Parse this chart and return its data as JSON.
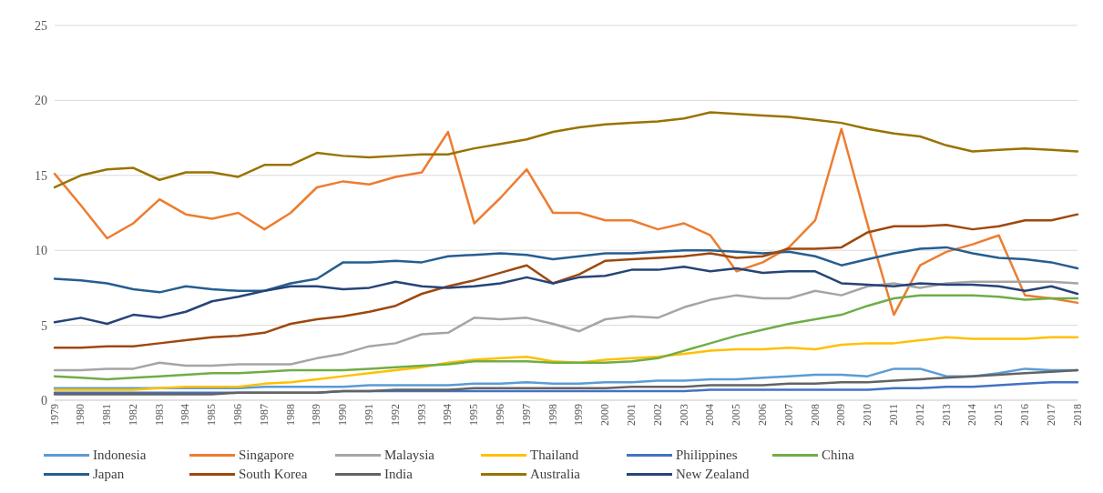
{
  "chart_data": {
    "type": "line",
    "categories": [
      "1979",
      "1980",
      "1981",
      "1982",
      "1983",
      "1984",
      "1985",
      "1986",
      "1987",
      "1988",
      "1989",
      "1990",
      "1991",
      "1992",
      "1993",
      "1994",
      "1995",
      "1996",
      "1997",
      "1998",
      "1999",
      "2000",
      "2001",
      "2002",
      "2003",
      "2004",
      "2005",
      "2006",
      "2007",
      "2008",
      "2009",
      "2010",
      "2011",
      "2012",
      "2013",
      "2014",
      "2015",
      "2016",
      "2017",
      "2018"
    ],
    "series": [
      {
        "name": "Indonesia",
        "color": "#5b9bd5",
        "values": [
          0.8,
          0.8,
          0.8,
          0.8,
          0.8,
          0.8,
          0.8,
          0.8,
          0.9,
          0.9,
          0.9,
          0.9,
          1.0,
          1.0,
          1.0,
          1.0,
          1.1,
          1.1,
          1.2,
          1.1,
          1.1,
          1.2,
          1.2,
          1.3,
          1.3,
          1.4,
          1.4,
          1.5,
          1.6,
          1.7,
          1.7,
          1.6,
          2.1,
          2.1,
          1.6,
          1.6,
          1.8,
          2.1,
          2.0,
          2.0
        ]
      },
      {
        "name": "Singapore",
        "color": "#ed7d31",
        "values": [
          15.1,
          13.0,
          10.8,
          11.8,
          13.4,
          12.4,
          12.1,
          12.5,
          11.4,
          12.5,
          14.2,
          14.6,
          14.4,
          14.9,
          15.2,
          17.9,
          11.8,
          13.5,
          15.4,
          12.5,
          12.5,
          12.0,
          12.0,
          11.4,
          11.8,
          11.0,
          8.6,
          9.2,
          10.2,
          12.0,
          18.1,
          11.7,
          5.7,
          9.0,
          9.9,
          10.4,
          11.0,
          7.0,
          6.8,
          6.5
        ]
      },
      {
        "name": "Malaysia",
        "color": "#a5a5a5",
        "values": [
          2.0,
          2.0,
          2.1,
          2.1,
          2.5,
          2.3,
          2.3,
          2.4,
          2.4,
          2.4,
          2.8,
          3.1,
          3.6,
          3.8,
          4.4,
          4.5,
          5.5,
          5.4,
          5.5,
          5.1,
          4.6,
          5.4,
          5.6,
          5.5,
          6.2,
          6.7,
          7.0,
          6.8,
          6.8,
          7.3,
          7.0,
          7.6,
          7.8,
          7.5,
          7.8,
          7.9,
          7.9,
          7.9,
          7.9,
          7.8
        ]
      },
      {
        "name": "Thailand",
        "color": "#ffc000",
        "values": [
          0.7,
          0.7,
          0.7,
          0.7,
          0.8,
          0.9,
          0.9,
          0.9,
          1.1,
          1.2,
          1.4,
          1.6,
          1.8,
          2.0,
          2.2,
          2.5,
          2.7,
          2.8,
          2.9,
          2.6,
          2.5,
          2.7,
          2.8,
          2.9,
          3.1,
          3.3,
          3.4,
          3.4,
          3.5,
          3.4,
          3.7,
          3.8,
          3.8,
          4.0,
          4.2,
          4.1,
          4.1,
          4.1,
          4.2,
          4.2
        ]
      },
      {
        "name": "Philippines",
        "color": "#4472c4",
        "values": [
          0.5,
          0.5,
          0.5,
          0.5,
          0.5,
          0.5,
          0.5,
          0.5,
          0.5,
          0.5,
          0.5,
          0.6,
          0.6,
          0.6,
          0.6,
          0.6,
          0.6,
          0.6,
          0.6,
          0.6,
          0.6,
          0.6,
          0.6,
          0.6,
          0.6,
          0.7,
          0.7,
          0.7,
          0.7,
          0.7,
          0.7,
          0.7,
          0.8,
          0.8,
          0.9,
          0.9,
          1.0,
          1.1,
          1.2,
          1.2
        ]
      },
      {
        "name": "China",
        "color": "#70ad47",
        "values": [
          1.6,
          1.5,
          1.4,
          1.5,
          1.6,
          1.7,
          1.8,
          1.8,
          1.9,
          2.0,
          2.0,
          2.0,
          2.1,
          2.2,
          2.3,
          2.4,
          2.6,
          2.6,
          2.6,
          2.5,
          2.5,
          2.5,
          2.6,
          2.8,
          3.3,
          3.8,
          4.3,
          4.7,
          5.1,
          5.4,
          5.7,
          6.3,
          6.8,
          7.0,
          7.0,
          7.0,
          6.9,
          6.7,
          6.8,
          6.8
        ]
      },
      {
        "name": "Japan",
        "color": "#255e91",
        "values": [
          8.1,
          8.0,
          7.8,
          7.4,
          7.2,
          7.6,
          7.4,
          7.3,
          7.3,
          7.8,
          8.1,
          9.2,
          9.2,
          9.3,
          9.2,
          9.6,
          9.7,
          9.8,
          9.7,
          9.4,
          9.6,
          9.8,
          9.8,
          9.9,
          10.0,
          10.0,
          9.9,
          9.8,
          9.9,
          9.6,
          9.0,
          9.4,
          9.8,
          10.1,
          10.2,
          9.8,
          9.5,
          9.4,
          9.2,
          8.8
        ]
      },
      {
        "name": "South Korea",
        "color": "#9e480e",
        "values": [
          3.5,
          3.5,
          3.6,
          3.6,
          3.8,
          4.0,
          4.2,
          4.3,
          4.5,
          5.1,
          5.4,
          5.6,
          5.9,
          6.3,
          7.1,
          7.6,
          8.0,
          8.5,
          9.0,
          7.8,
          8.4,
          9.3,
          9.4,
          9.5,
          9.6,
          9.8,
          9.5,
          9.6,
          10.1,
          10.1,
          10.2,
          11.2,
          11.6,
          11.6,
          11.7,
          11.4,
          11.6,
          12.0,
          12.0,
          12.4
        ]
      },
      {
        "name": "India",
        "color": "#636363",
        "values": [
          0.4,
          0.4,
          0.4,
          0.4,
          0.4,
          0.4,
          0.4,
          0.5,
          0.5,
          0.5,
          0.5,
          0.6,
          0.6,
          0.7,
          0.7,
          0.7,
          0.8,
          0.8,
          0.8,
          0.8,
          0.8,
          0.8,
          0.9,
          0.9,
          0.9,
          1.0,
          1.0,
          1.0,
          1.1,
          1.1,
          1.2,
          1.2,
          1.3,
          1.4,
          1.5,
          1.6,
          1.7,
          1.8,
          1.9,
          2.0
        ]
      },
      {
        "name": "Australia",
        "color": "#997300",
        "values": [
          14.2,
          15.0,
          15.4,
          15.5,
          14.7,
          15.2,
          15.2,
          14.9,
          15.7,
          15.7,
          16.5,
          16.3,
          16.2,
          16.3,
          16.4,
          16.4,
          16.8,
          17.1,
          17.4,
          17.9,
          18.2,
          18.4,
          18.5,
          18.6,
          18.8,
          19.2,
          19.1,
          19.0,
          18.9,
          18.7,
          18.5,
          18.1,
          17.8,
          17.6,
          17.0,
          16.6,
          16.7,
          16.8,
          16.7,
          16.6
        ]
      },
      {
        "name": "New Zealand",
        "color": "#264478",
        "values": [
          5.2,
          5.5,
          5.1,
          5.7,
          5.5,
          5.9,
          6.6,
          6.9,
          7.3,
          7.6,
          7.6,
          7.4,
          7.5,
          7.9,
          7.6,
          7.5,
          7.6,
          7.8,
          8.2,
          7.8,
          8.2,
          8.3,
          8.7,
          8.7,
          8.9,
          8.6,
          8.8,
          8.5,
          8.6,
          8.6,
          7.8,
          7.7,
          7.6,
          7.8,
          7.7,
          7.7,
          7.6,
          7.3,
          7.6,
          7.1
        ]
      }
    ],
    "ylim": [
      0,
      25
    ],
    "yticks": [
      0,
      5,
      10,
      15,
      20,
      25
    ],
    "grid": "y",
    "legend": "bottom",
    "marker": "none",
    "line_style": "solid"
  }
}
